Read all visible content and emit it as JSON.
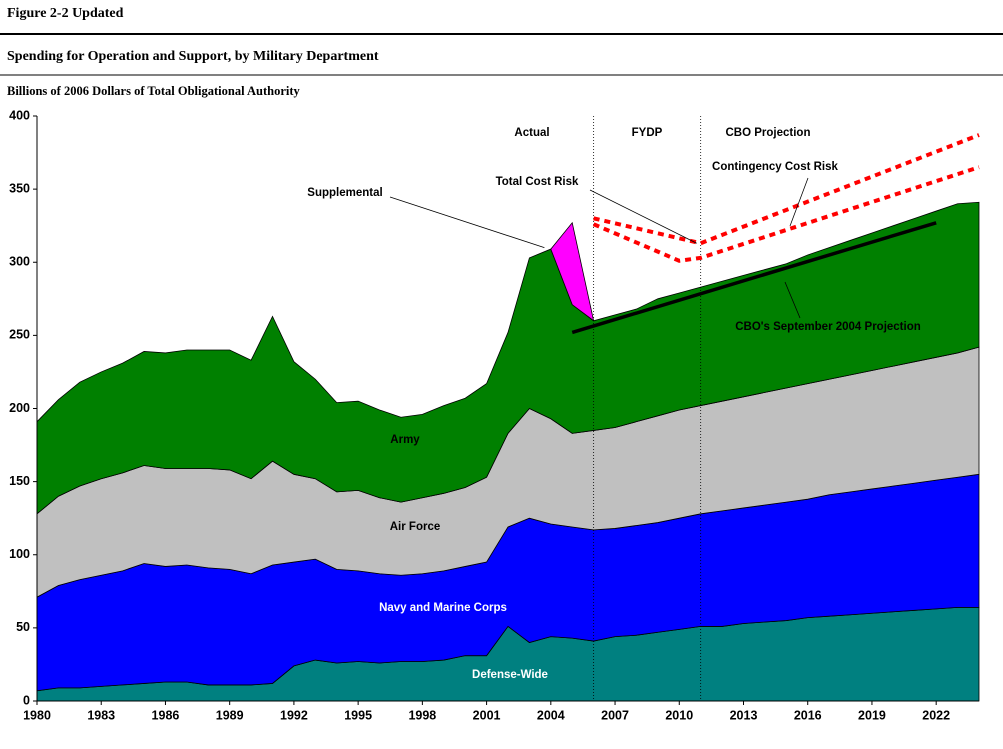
{
  "header": {
    "figure": "Figure 2-2 Updated",
    "title": "Spending for Operation and Support, by Military Department"
  },
  "chart_data": {
    "type": "stacked_area",
    "ylabel": "Billions of 2006 Dollars of Total Obligational Authority",
    "x": [
      1980,
      1981,
      1982,
      1983,
      1984,
      1985,
      1986,
      1987,
      1988,
      1989,
      1990,
      1991,
      1992,
      1993,
      1994,
      1995,
      1996,
      1997,
      1998,
      1999,
      2000,
      2001,
      2002,
      2003,
      2004,
      2005,
      2006,
      2007,
      2008,
      2009,
      2010,
      2011,
      2012,
      2013,
      2014,
      2015,
      2016,
      2017,
      2018,
      2019,
      2020,
      2021,
      2022,
      2023,
      2024
    ],
    "xlim": [
      1980,
      2024
    ],
    "xticks": [
      1980,
      1983,
      1986,
      1989,
      1992,
      1995,
      1998,
      2001,
      2004,
      2007,
      2010,
      2013,
      2016,
      2019,
      2022
    ],
    "ylim": [
      0,
      400
    ],
    "yticks": [
      0,
      50,
      100,
      150,
      200,
      250,
      300,
      350,
      400
    ],
    "series": [
      {
        "name": "Defense-Wide",
        "color": "#008080",
        "values": [
          7,
          9,
          9,
          10,
          11,
          12,
          13,
          13,
          11,
          11,
          11,
          12,
          24,
          28,
          26,
          27,
          26,
          27,
          27,
          28,
          31,
          31,
          51,
          40,
          44,
          43,
          41,
          44,
          45,
          47,
          49,
          51,
          51,
          53,
          54,
          55,
          57,
          58,
          59,
          60,
          61,
          62,
          63,
          64,
          64
        ]
      },
      {
        "name": "Navy and Marine Corps",
        "color": "#0000ff",
        "values": [
          64,
          70,
          74,
          76,
          78,
          82,
          79,
          80,
          80,
          79,
          76,
          81,
          71,
          69,
          64,
          62,
          61,
          59,
          60,
          61,
          61,
          64,
          68,
          85,
          77,
          76,
          76,
          74,
          75,
          75,
          76,
          77,
          79,
          79,
          80,
          81,
          81,
          83,
          84,
          85,
          86,
          87,
          88,
          89,
          91
        ]
      },
      {
        "name": "Air Force",
        "color": "#c0c0c0",
        "values": [
          57,
          61,
          64,
          66,
          67,
          67,
          67,
          66,
          68,
          68,
          65,
          71,
          60,
          55,
          53,
          55,
          52,
          50,
          52,
          53,
          54,
          58,
          64,
          75,
          72,
          64,
          68,
          69,
          71,
          73,
          74,
          74,
          75,
          76,
          77,
          78,
          79,
          79,
          80,
          81,
          82,
          83,
          84,
          85,
          87
        ]
      },
      {
        "name": "Army",
        "color": "#008000",
        "values": [
          63,
          66,
          71,
          73,
          75,
          78,
          79,
          81,
          81,
          82,
          81,
          99,
          77,
          68,
          61,
          61,
          60,
          58,
          57,
          60,
          61,
          64,
          69,
          103,
          116,
          88,
          75,
          77,
          77,
          80,
          80,
          81,
          82,
          83,
          84,
          85,
          88,
          90,
          92,
          94,
          96,
          98,
          100,
          102,
          99
        ]
      },
      {
        "name": "Supplemental",
        "color": "#ff00ff",
        "values": [
          null,
          null,
          null,
          null,
          null,
          null,
          null,
          null,
          null,
          null,
          null,
          null,
          null,
          null,
          null,
          null,
          null,
          null,
          null,
          null,
          null,
          null,
          null,
          null,
          0,
          56,
          0,
          null,
          null,
          null,
          null,
          null,
          null,
          null,
          null,
          null,
          null,
          null,
          null,
          null,
          null,
          null,
          null,
          null,
          null
        ]
      }
    ],
    "lines": [
      {
        "name": "Total Cost Risk",
        "color": "#ff0000",
        "style": "dashed",
        "x": [
          2006,
          2011,
          2024
        ],
        "values": [
          330,
          313,
          387
        ]
      },
      {
        "name": "Contingency Cost Risk",
        "color": "#ff0000",
        "style": "dashed",
        "x": [
          2006,
          2010,
          2011,
          2024
        ],
        "values": [
          326,
          301,
          303,
          365
        ]
      },
      {
        "name": "CBO's September 2004 Projection",
        "color": "#000000",
        "style": "solid",
        "x": [
          2005,
          2022
        ],
        "values": [
          252,
          327
        ]
      }
    ],
    "regions": [
      "Actual",
      "FYDP",
      "CBO Projection"
    ],
    "dividers": [
      2006,
      2011
    ]
  }
}
